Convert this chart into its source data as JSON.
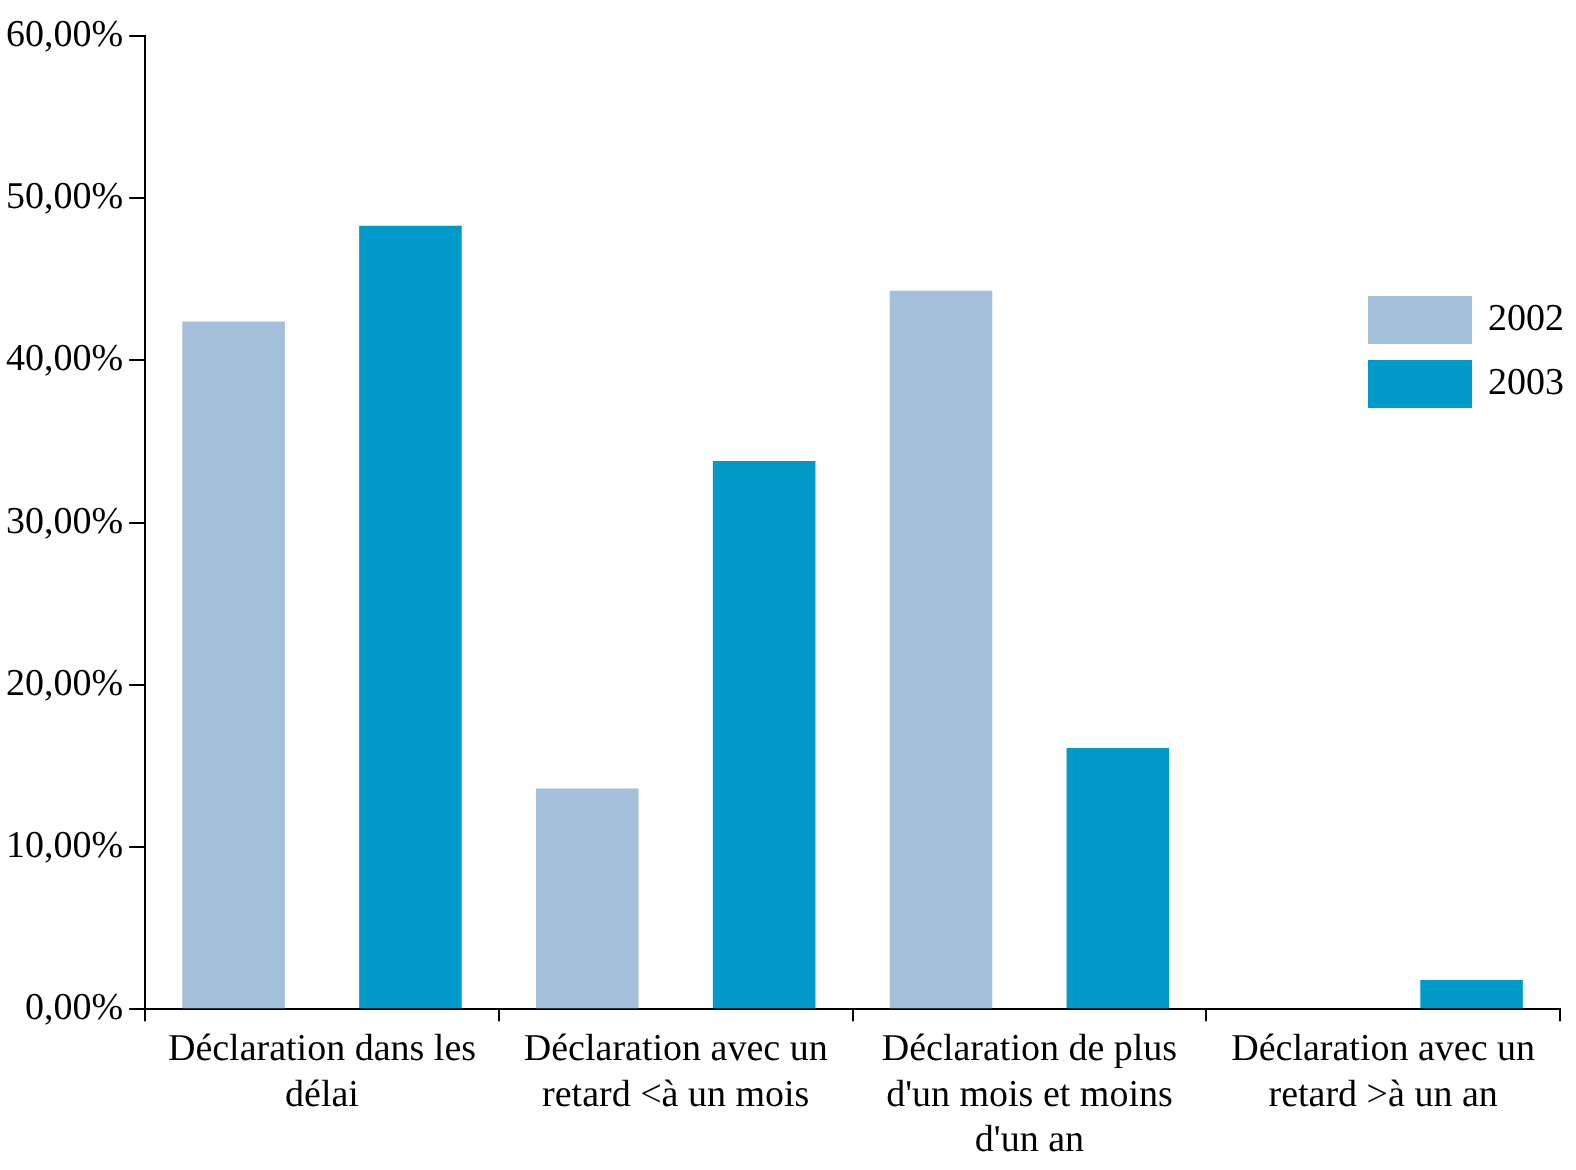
{
  "chart_data": {
    "type": "bar",
    "categories": [
      "Déclaration dans les délai",
      "Déclaration avec un retard <à un mois",
      "Déclaration de plus d'un mois et moins d'un an",
      "Déclaration avec un retard >à un an"
    ],
    "series": [
      {
        "name": "2002",
        "color": "#a3bfd9",
        "values": [
          42.4,
          13.6,
          44.3,
          0
        ]
      },
      {
        "name": "2003",
        "color": "#009ac8",
        "values": [
          48.3,
          33.8,
          16.1,
          1.8
        ]
      }
    ],
    "ylim": [
      0,
      60
    ],
    "yticks": [
      {
        "value": 0,
        "label": "0,00%"
      },
      {
        "value": 10,
        "label": "10,00%"
      },
      {
        "value": 20,
        "label": "20,00%"
      },
      {
        "value": 30,
        "label": "30,00%"
      },
      {
        "value": 40,
        "label": "40,00%"
      },
      {
        "value": 50,
        "label": "50,00%"
      },
      {
        "value": 60,
        "label": "60,00%"
      }
    ],
    "grid": false,
    "legend": "right"
  }
}
